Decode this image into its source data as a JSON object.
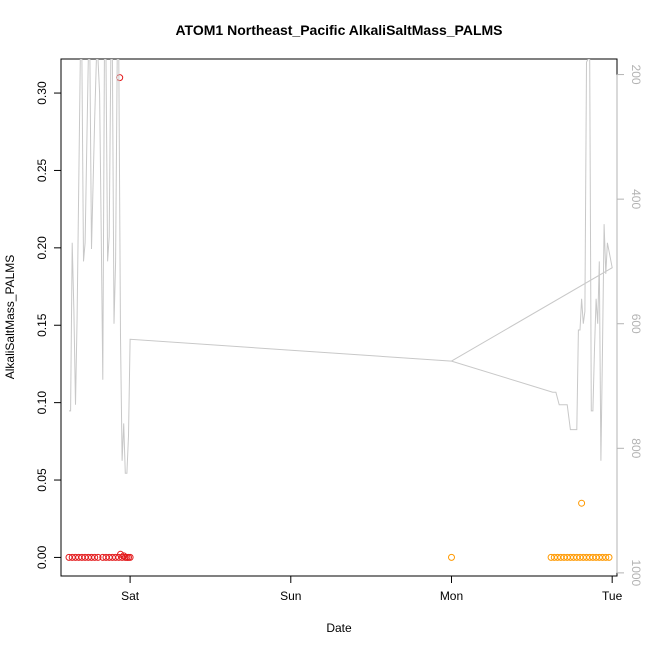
{
  "chart_data": {
    "type": "scatter",
    "title": "ATOM1 Northeast_Pacific AlkaliSaltMass_PALMS",
    "xlabel": "Date",
    "ylabel": "AlkaliSaltMass_PALMS",
    "x_tick_labels": [
      "Sat",
      "Sun",
      "Mon",
      "Tue"
    ],
    "x_tick_values": [
      1,
      2,
      3,
      4
    ],
    "xlim": [
      0.57,
      4.03
    ],
    "ylim": [
      -0.012,
      0.322
    ],
    "y_ticks": [
      0.0,
      0.05,
      0.1,
      0.15,
      0.2,
      0.25,
      0.3
    ],
    "y_tick_labels": [
      "0.00",
      "0.05",
      "0.10",
      "0.15",
      "0.20",
      "0.25",
      "0.30"
    ],
    "y2_ticks": [
      200,
      400,
      600,
      800,
      1000
    ],
    "y2_tick_labels": [
      "200",
      "400",
      "600",
      "800",
      "1000"
    ],
    "y2lim": [
      1005,
      175
    ],
    "series": [
      {
        "color": "#e31a1c",
        "marker": "open-circle",
        "points": [
          [
            0.62,
            0
          ],
          [
            0.64,
            0
          ],
          [
            0.66,
            0
          ],
          [
            0.68,
            0
          ],
          [
            0.7,
            0
          ],
          [
            0.72,
            0
          ],
          [
            0.74,
            0
          ],
          [
            0.76,
            0
          ],
          [
            0.78,
            0
          ],
          [
            0.8,
            0
          ],
          [
            0.83,
            0
          ],
          [
            0.85,
            0
          ],
          [
            0.87,
            0
          ],
          [
            0.89,
            0
          ],
          [
            0.91,
            0
          ],
          [
            0.93,
            0
          ],
          [
            0.94,
            0.002
          ],
          [
            0.95,
            0
          ],
          [
            0.96,
            0.001
          ],
          [
            0.97,
            0
          ],
          [
            0.98,
            0
          ],
          [
            0.99,
            0
          ],
          [
            1.0,
            0
          ],
          [
            0.935,
            0.31
          ]
        ]
      },
      {
        "color": "#ff9900",
        "marker": "open-circle",
        "points": [
          [
            3.0,
            0
          ],
          [
            3.62,
            0
          ],
          [
            3.64,
            0
          ],
          [
            3.66,
            0
          ],
          [
            3.68,
            0
          ],
          [
            3.7,
            0
          ],
          [
            3.72,
            0
          ],
          [
            3.74,
            0
          ],
          [
            3.76,
            0
          ],
          [
            3.78,
            0
          ],
          [
            3.8,
            0
          ],
          [
            3.82,
            0
          ],
          [
            3.84,
            0
          ],
          [
            3.86,
            0
          ],
          [
            3.88,
            0
          ],
          [
            3.9,
            0
          ],
          [
            3.92,
            0
          ],
          [
            3.94,
            0
          ],
          [
            3.96,
            0
          ],
          [
            3.98,
            0
          ],
          [
            3.81,
            0.035
          ]
        ]
      },
      {
        "color": "#c8c8c8",
        "marker": "line",
        "axis": "right",
        "points": [
          [
            0.62,
            740
          ],
          [
            0.63,
            740
          ],
          [
            0.64,
            470
          ],
          [
            0.65,
            580
          ],
          [
            0.66,
            730
          ],
          [
            0.67,
            590
          ],
          [
            0.69,
            175
          ],
          [
            0.7,
            175
          ],
          [
            0.71,
            500
          ],
          [
            0.72,
            470
          ],
          [
            0.74,
            175
          ],
          [
            0.75,
            175
          ],
          [
            0.76,
            480
          ],
          [
            0.78,
            270
          ],
          [
            0.79,
            175
          ],
          [
            0.8,
            175
          ],
          [
            0.81,
            230
          ],
          [
            0.82,
            450
          ],
          [
            0.83,
            690
          ],
          [
            0.84,
            175
          ],
          [
            0.85,
            175
          ],
          [
            0.86,
            500
          ],
          [
            0.87,
            460
          ],
          [
            0.88,
            175
          ],
          [
            0.89,
            175
          ],
          [
            0.9,
            600
          ],
          [
            0.91,
            500
          ],
          [
            0.92,
            175
          ],
          [
            0.93,
            175
          ],
          [
            0.94,
            620
          ],
          [
            0.95,
            820
          ],
          [
            0.96,
            760
          ],
          [
            0.97,
            840
          ],
          [
            0.98,
            840
          ],
          [
            0.99,
            780
          ],
          [
            1.0,
            625
          ],
          [
            3.0,
            660
          ],
          [
            3.63,
            710
          ],
          [
            3.65,
            710
          ],
          [
            3.67,
            730
          ],
          [
            3.7,
            730
          ],
          [
            3.72,
            730
          ],
          [
            3.74,
            770
          ],
          [
            3.77,
            770
          ],
          [
            3.78,
            770
          ],
          [
            3.79,
            610
          ],
          [
            3.8,
            610
          ],
          [
            3.81,
            560
          ],
          [
            3.82,
            600
          ],
          [
            3.83,
            580
          ],
          [
            3.84,
            180
          ],
          [
            3.85,
            175
          ],
          [
            3.86,
            175
          ],
          [
            3.87,
            740
          ],
          [
            3.88,
            740
          ],
          [
            3.89,
            640
          ],
          [
            3.9,
            560
          ],
          [
            3.91,
            600
          ],
          [
            3.92,
            500
          ],
          [
            3.93,
            820
          ],
          [
            3.94,
            640
          ],
          [
            3.95,
            440
          ],
          [
            3.96,
            520
          ],
          [
            3.97,
            470
          ],
          [
            4.0,
            510
          ],
          [
            3.0,
            660
          ]
        ]
      }
    ]
  }
}
